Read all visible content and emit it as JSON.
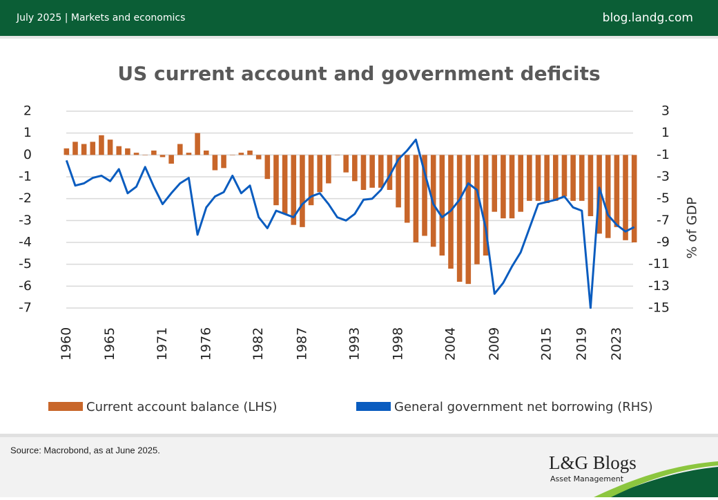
{
  "header": {
    "section": "July 2025 | Markets and economics",
    "site": "blog.landg.com"
  },
  "chart_data": {
    "type": "bar",
    "title": "US current account and government deficits",
    "y2label": "% of GDP",
    "x": [
      1960,
      1961,
      1962,
      1963,
      1964,
      1965,
      1966,
      1967,
      1968,
      1969,
      1970,
      1971,
      1972,
      1973,
      1974,
      1975,
      1976,
      1977,
      1978,
      1979,
      1980,
      1981,
      1982,
      1983,
      1984,
      1985,
      1986,
      1987,
      1988,
      1989,
      1990,
      1991,
      1992,
      1993,
      1994,
      1995,
      1996,
      1997,
      1998,
      1999,
      2000,
      2001,
      2002,
      2003,
      2004,
      2005,
      2006,
      2007,
      2008,
      2009,
      2010,
      2011,
      2012,
      2013,
      2014,
      2015,
      2016,
      2017,
      2018,
      2019,
      2020,
      2021,
      2022,
      2023,
      2024,
      2025
    ],
    "series": [
      {
        "name": "Current account balance (LHS)",
        "type": "bar",
        "color": "#c8662a",
        "values": [
          0.3,
          0.6,
          0.5,
          0.6,
          0.9,
          0.7,
          0.4,
          0.3,
          0.1,
          0.0,
          0.2,
          -0.1,
          -0.4,
          0.5,
          0.1,
          1.0,
          0.2,
          -0.7,
          -0.6,
          0.0,
          0.1,
          0.2,
          -0.2,
          -1.1,
          -2.3,
          -2.7,
          -3.2,
          -3.3,
          -2.3,
          -1.7,
          -1.3,
          0.0,
          -0.8,
          -1.2,
          -1.6,
          -1.5,
          -1.5,
          -1.6,
          -2.4,
          -3.1,
          -4.0,
          -3.7,
          -4.2,
          -4.6,
          -5.2,
          -5.8,
          -5.9,
          -5.0,
          -4.6,
          -2.6,
          -2.9,
          -2.9,
          -2.6,
          -2.1,
          -2.1,
          -2.2,
          -2.1,
          -1.9,
          -2.1,
          -2.1,
          -2.8,
          -3.6,
          -3.8,
          -3.3,
          -3.9,
          -4.0
        ]
      },
      {
        "name": "General government net borrowing (RHS)",
        "type": "line",
        "axis": "y2",
        "color": "#0a5cbf",
        "values": [
          -1.5,
          -3.8,
          -3.6,
          -3.1,
          -2.9,
          -3.4,
          -2.3,
          -4.5,
          -3.9,
          -2.1,
          -3.9,
          -5.5,
          -4.5,
          -3.6,
          -3.1,
          -8.3,
          -5.8,
          -4.8,
          -4.4,
          -2.9,
          -4.5,
          -3.8,
          -6.7,
          -7.7,
          -6.1,
          -6.4,
          -6.7,
          -5.5,
          -4.8,
          -4.5,
          -5.5,
          -6.7,
          -7.0,
          -6.4,
          -5.1,
          -5.0,
          -4.2,
          -2.9,
          -1.4,
          -0.6,
          0.4,
          -2.6,
          -5.5,
          -6.7,
          -6.1,
          -5.1,
          -3.6,
          -4.2,
          -7.7,
          -13.7,
          -12.7,
          -11.2,
          -9.9,
          -7.7,
          -5.5,
          -5.3,
          -5.1,
          -4.8,
          -5.8,
          -6.1,
          -15,
          -4.0,
          -6.5,
          -7.4,
          -8.0,
          -7.6
        ]
      }
    ],
    "xlim": [
      1959.5,
      2025.5
    ],
    "xticks": [
      1960,
      1965,
      1971,
      1976,
      1982,
      1987,
      1993,
      1998,
      2004,
      2009,
      2015,
      2019,
      2023
    ],
    "ylim": [
      -7,
      2
    ],
    "yticks": [
      2,
      1,
      0,
      -1,
      -2,
      -3,
      -4,
      -5,
      -6,
      -7
    ],
    "y2lim": [
      -15,
      3
    ],
    "y2ticks": [
      3,
      1,
      -1,
      -3,
      -5,
      -7,
      -9,
      -11,
      -13,
      -15
    ],
    "grid": true
  },
  "source": "Source: Macrobond, as at June 2025.",
  "logo": {
    "name": "L&G Blogs",
    "sub": "Asset Management"
  }
}
